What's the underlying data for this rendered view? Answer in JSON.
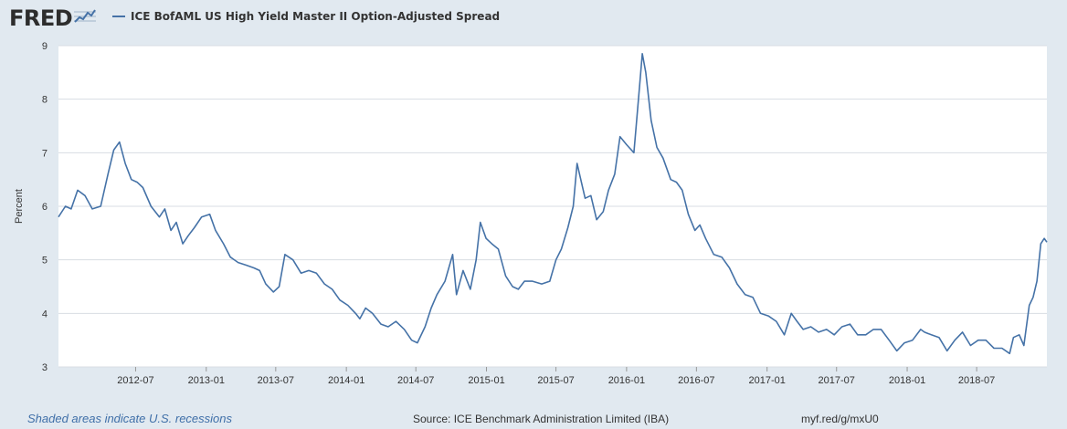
{
  "header": {
    "logo_text": "FRED",
    "logo_icon": "trend-chart-icon"
  },
  "colors": {
    "background": "#e1e9f0",
    "plot_background": "#ffffff",
    "series": "#4572a7",
    "grid": "#d8dde3"
  },
  "chart_data": {
    "type": "line",
    "title": "",
    "xlabel": "",
    "ylabel": "Percent",
    "ylim": [
      3,
      9
    ],
    "yticks": [
      3,
      4,
      5,
      6,
      7,
      8,
      9
    ],
    "xlim": [
      "2011-12-13",
      "2018-12-31"
    ],
    "xticks": [
      "2012-07",
      "2013-01",
      "2013-07",
      "2014-01",
      "2014-07",
      "2015-01",
      "2015-07",
      "2016-01",
      "2016-07",
      "2017-01",
      "2017-07",
      "2018-01",
      "2018-07"
    ],
    "grid": "horizontal",
    "legend_position": "top-left",
    "series": [
      {
        "name": "ICE BofAML US High Yield Master II Option-Adjusted Spread",
        "x": [
          "2011-12-13",
          "2011-12-31",
          "2012-01-15",
          "2012-02-01",
          "2012-02-20",
          "2012-03-10",
          "2012-04-01",
          "2012-04-20",
          "2012-05-05",
          "2012-05-20",
          "2012-06-04",
          "2012-06-20",
          "2012-07-05",
          "2012-07-20",
          "2012-08-10",
          "2012-09-01",
          "2012-09-15",
          "2012-10-01",
          "2012-10-15",
          "2012-11-01",
          "2012-11-15",
          "2012-12-01",
          "2012-12-20",
          "2013-01-10",
          "2013-01-25",
          "2013-02-15",
          "2013-03-05",
          "2013-03-25",
          "2013-04-15",
          "2013-05-05",
          "2013-05-20",
          "2013-06-05",
          "2013-06-25",
          "2013-07-10",
          "2013-07-25",
          "2013-08-15",
          "2013-09-05",
          "2013-09-25",
          "2013-10-15",
          "2013-11-05",
          "2013-11-25",
          "2013-12-15",
          "2014-01-05",
          "2014-01-25",
          "2014-02-05",
          "2014-02-20",
          "2014-03-10",
          "2014-04-01",
          "2014-04-20",
          "2014-05-10",
          "2014-06-01",
          "2014-06-20",
          "2014-07-05",
          "2014-07-25",
          "2014-08-10",
          "2014-08-25",
          "2014-09-15",
          "2014-10-05",
          "2014-10-15",
          "2014-11-01",
          "2014-11-20",
          "2014-12-05",
          "2014-12-16",
          "2014-12-31",
          "2015-01-15",
          "2015-02-01",
          "2015-02-20",
          "2015-03-10",
          "2015-03-25",
          "2015-04-10",
          "2015-05-01",
          "2015-05-25",
          "2015-06-15",
          "2015-07-01",
          "2015-07-15",
          "2015-08-01",
          "2015-08-15",
          "2015-08-25",
          "2015-09-15",
          "2015-09-30",
          "2015-10-15",
          "2015-11-01",
          "2015-11-15",
          "2015-12-01",
          "2015-12-15",
          "2016-01-01",
          "2016-01-20",
          "2016-02-01",
          "2016-02-11",
          "2016-02-20",
          "2016-03-05",
          "2016-03-20",
          "2016-04-05",
          "2016-04-25",
          "2016-05-10",
          "2016-05-25",
          "2016-06-10",
          "2016-06-27",
          "2016-07-10",
          "2016-07-25",
          "2016-08-15",
          "2016-09-05",
          "2016-09-25",
          "2016-10-15",
          "2016-11-05",
          "2016-11-25",
          "2016-12-15",
          "2017-01-05",
          "2017-01-25",
          "2017-02-15",
          "2017-03-05",
          "2017-03-20",
          "2017-04-05",
          "2017-04-25",
          "2017-05-15",
          "2017-06-05",
          "2017-06-25",
          "2017-07-15",
          "2017-08-05",
          "2017-08-25",
          "2017-09-15",
          "2017-10-05",
          "2017-10-25",
          "2017-11-15",
          "2017-12-05",
          "2017-12-25",
          "2018-01-15",
          "2018-02-05",
          "2018-02-15",
          "2018-03-05",
          "2018-03-25",
          "2018-04-15",
          "2018-05-05",
          "2018-05-25",
          "2018-06-15",
          "2018-07-05",
          "2018-07-25",
          "2018-08-15",
          "2018-09-05",
          "2018-09-25",
          "2018-10-05",
          "2018-10-20",
          "2018-11-01",
          "2018-11-15",
          "2018-11-25",
          "2018-12-05",
          "2018-12-15",
          "2018-12-24",
          "2018-12-31"
        ],
        "values": [
          5.8,
          6.0,
          5.95,
          6.3,
          6.2,
          5.95,
          6.0,
          6.6,
          7.05,
          7.2,
          6.8,
          6.5,
          6.45,
          6.35,
          6.0,
          5.8,
          5.95,
          5.55,
          5.7,
          5.3,
          5.45,
          5.6,
          5.8,
          5.85,
          5.55,
          5.3,
          5.05,
          4.95,
          4.9,
          4.85,
          4.8,
          4.55,
          4.4,
          4.5,
          5.1,
          5.0,
          4.75,
          4.8,
          4.75,
          4.55,
          4.45,
          4.25,
          4.15,
          4.0,
          3.9,
          4.1,
          4.0,
          3.8,
          3.75,
          3.85,
          3.7,
          3.5,
          3.45,
          3.75,
          4.1,
          4.35,
          4.6,
          5.1,
          4.35,
          4.8,
          4.45,
          5.0,
          5.7,
          5.4,
          5.3,
          5.2,
          4.7,
          4.5,
          4.45,
          4.6,
          4.6,
          4.55,
          4.6,
          5.0,
          5.2,
          5.6,
          6.0,
          6.8,
          6.15,
          6.2,
          5.75,
          5.9,
          6.3,
          6.6,
          7.3,
          7.15,
          7.0,
          8.0,
          8.85,
          8.5,
          7.6,
          7.1,
          6.9,
          6.5,
          6.45,
          6.3,
          5.85,
          5.55,
          5.65,
          5.4,
          5.1,
          5.05,
          4.85,
          4.55,
          4.35,
          4.3,
          4.0,
          3.95,
          3.85,
          3.6,
          4.0,
          3.85,
          3.7,
          3.75,
          3.65,
          3.7,
          3.6,
          3.75,
          3.8,
          3.6,
          3.6,
          3.7,
          3.7,
          3.5,
          3.3,
          3.45,
          3.5,
          3.7,
          3.65,
          3.6,
          3.55,
          3.3,
          3.5,
          3.65,
          3.4,
          3.5,
          3.5,
          3.35,
          3.35,
          3.25,
          3.55,
          3.6,
          3.4,
          4.15,
          4.3,
          4.6,
          5.3,
          5.4,
          5.33
        ]
      }
    ]
  },
  "footer": {
    "recession_note": "Shaded areas indicate U.S. recessions",
    "source": "Source: ICE Benchmark Administration Limited (IBA)",
    "link": "myf.red/g/mxU0"
  }
}
